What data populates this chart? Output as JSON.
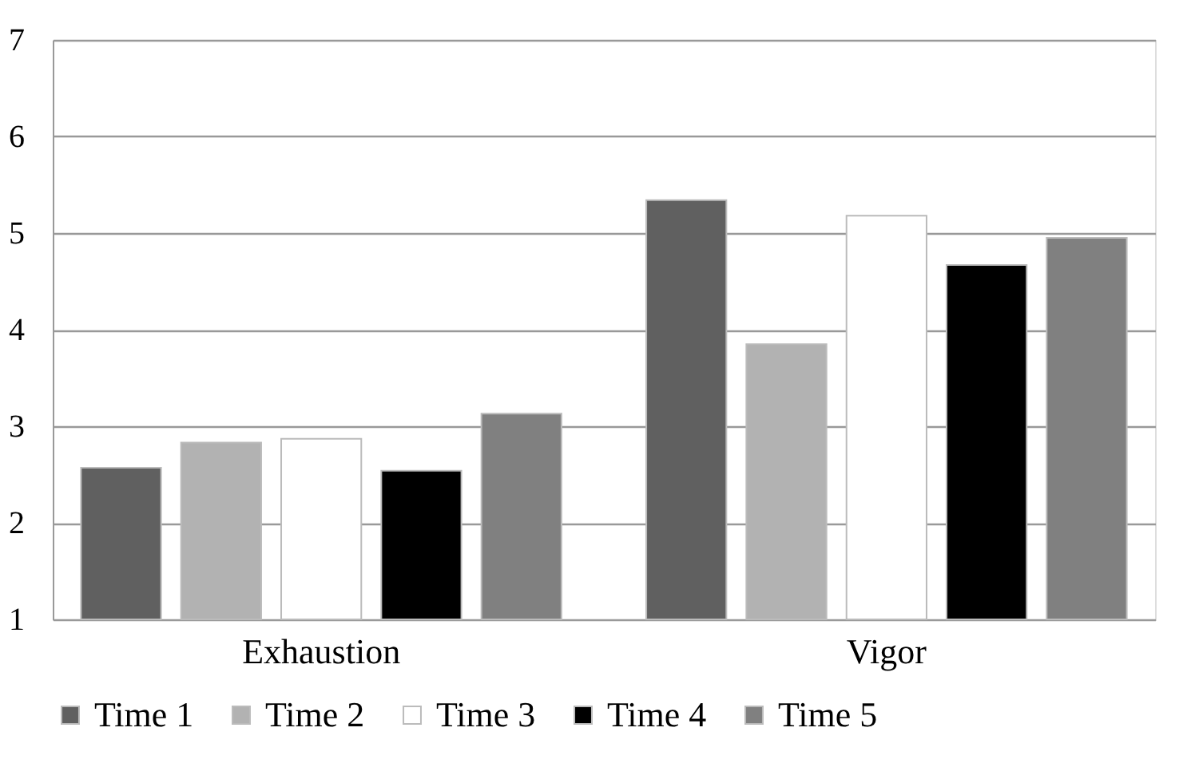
{
  "chart_data": {
    "type": "bar",
    "categories": [
      "Exhaustion",
      "Vigor"
    ],
    "series": [
      {
        "name": "Time 1",
        "color": "#606060",
        "values": [
          2.57,
          5.34
        ]
      },
      {
        "name": "Time 2",
        "color": "#b2b2b2",
        "values": [
          2.83,
          3.85
        ]
      },
      {
        "name": "Time 3",
        "color": "#ffffff",
        "values": [
          2.87,
          5.18
        ]
      },
      {
        "name": "Time 4",
        "color": "#000000",
        "values": [
          2.54,
          4.67
        ]
      },
      {
        "name": "Time 5",
        "color": "#808080",
        "values": [
          3.13,
          4.95
        ]
      }
    ],
    "ylim": [
      1,
      7
    ],
    "yticks": [
      1,
      2,
      3,
      4,
      5,
      6,
      7
    ],
    "grid": "y",
    "legend": "bottom"
  }
}
